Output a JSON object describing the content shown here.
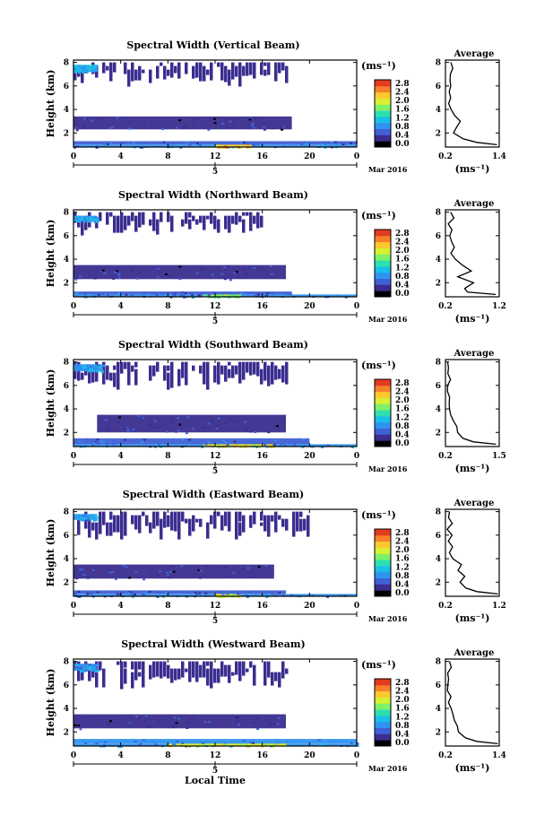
{
  "figure": {
    "time_label": "Local Time",
    "date_day": "5",
    "date_month": "Mar 2016",
    "colorbar_unit": "(ms⁻¹)",
    "profile_title": "Average",
    "profile_unit": "(ms⁻¹)",
    "height_label": "Height (km)",
    "colors": {
      "colorscale": [
        "#000000",
        "#3a2d8f",
        "#4060d6",
        "#2f94f0",
        "#19c0e8",
        "#2ee0b0",
        "#7ef06a",
        "#d6f032",
        "#fcc830",
        "#f7802a",
        "#e33b1f"
      ],
      "background": "#ffffff"
    }
  },
  "chart_data": [
    {
      "type": "heatmap",
      "title": "Spectral Width (Vertical Beam)",
      "xlabel": "",
      "ylabel": "Height (km)",
      "x_ticks": [
        "0",
        "4",
        "8",
        "12",
        "16",
        "20",
        "0"
      ],
      "y_ticks": [
        "2",
        "4",
        "6",
        "8"
      ],
      "xlim": [
        0,
        24
      ],
      "ylim": [
        0.8,
        8.2
      ],
      "colorbar": {
        "unit": "(ms⁻¹)",
        "ticks": [
          "0.0",
          "0.4",
          "0.8",
          "1.2",
          "1.6",
          "2.0",
          "2.4",
          "2.8"
        ],
        "range": [
          0,
          2.8
        ]
      },
      "layers": [
        {
          "t": [
            0,
            24
          ],
          "h": [
            0.8,
            1.0
          ],
          "v": 0.8
        },
        {
          "t": [
            12,
            15
          ],
          "h": [
            0.8,
            1.05
          ],
          "v": 2.2
        },
        {
          "t": [
            0,
            24
          ],
          "h": [
            1.0,
            1.3
          ],
          "v": 0.6
        },
        {
          "t": [
            0,
            18.5
          ],
          "h": [
            2.3,
            3.4
          ],
          "v": 0.4
        },
        {
          "t": [
            0,
            18
          ],
          "h": [
            7.2,
            8.0
          ],
          "v": 0.3
        },
        {
          "t": [
            0,
            2
          ],
          "h": [
            7.2,
            7.8
          ],
          "v": 1.0
        }
      ],
      "profile": {
        "title": "Average",
        "xlabel": "(ms⁻¹)",
        "x_ticks": [
          "0.2",
          "1.4"
        ],
        "xlim": [
          0.2,
          1.4
        ],
        "y_ticks": [
          "2",
          "4",
          "6",
          "8"
        ],
        "ylim": [
          0.8,
          8.2
        ],
        "heights": [
          1.0,
          1.2,
          1.5,
          2.0,
          2.5,
          3.0,
          3.5,
          4.0,
          4.5,
          5.0,
          5.5,
          6.0,
          6.5,
          7.0,
          7.5,
          8.0
        ],
        "values": [
          1.35,
          0.9,
          0.6,
          0.4,
          0.45,
          0.55,
          0.4,
          0.35,
          0.3,
          0.3,
          0.28,
          0.3,
          0.28,
          0.3,
          0.35,
          0.3
        ]
      }
    },
    {
      "type": "heatmap",
      "title": "Spectral Width (Northward Beam)",
      "xlabel": "",
      "ylabel": "Height (km)",
      "x_ticks": [
        "0",
        "4",
        "8",
        "12",
        "16",
        "20",
        "0"
      ],
      "y_ticks": [
        "2",
        "4",
        "6",
        "8"
      ],
      "xlim": [
        0,
        24
      ],
      "ylim": [
        0.8,
        8.2
      ],
      "colorbar": {
        "unit": "(ms⁻¹)",
        "ticks": [
          "0.0",
          "0.4",
          "0.8",
          "1.2",
          "1.6",
          "2.0",
          "2.4",
          "2.8"
        ],
        "range": [
          0,
          2.8
        ]
      },
      "layers": [
        {
          "t": [
            0,
            24
          ],
          "h": [
            0.8,
            1.0
          ],
          "v": 0.7
        },
        {
          "t": [
            11,
            14
          ],
          "h": [
            0.8,
            1.05
          ],
          "v": 1.6
        },
        {
          "t": [
            0,
            18.5
          ],
          "h": [
            1.0,
            1.25
          ],
          "v": 0.5
        },
        {
          "t": [
            0,
            18
          ],
          "h": [
            2.3,
            3.5
          ],
          "v": 0.4
        },
        {
          "t": [
            0,
            16
          ],
          "h": [
            7.2,
            8.0
          ],
          "v": 0.3
        },
        {
          "t": [
            0,
            2
          ],
          "h": [
            7.2,
            7.7
          ],
          "v": 0.9
        }
      ],
      "profile": {
        "title": "Average",
        "xlabel": "(ms⁻¹)",
        "x_ticks": [
          "0.2",
          "1.2"
        ],
        "xlim": [
          0.2,
          1.2
        ],
        "y_ticks": [
          "2",
          "4",
          "6",
          "8"
        ],
        "ylim": [
          0.8,
          8.2
        ],
        "heights": [
          1.0,
          1.2,
          1.5,
          2.0,
          2.5,
          3.0,
          3.5,
          4.0,
          4.5,
          5.0,
          5.5,
          6.0,
          6.5,
          7.0,
          7.5,
          8.0
        ],
        "values": [
          1.15,
          0.6,
          0.55,
          0.7,
          0.45,
          0.65,
          0.5,
          0.4,
          0.3,
          0.35,
          0.3,
          0.25,
          0.3,
          0.28,
          0.35,
          0.3
        ]
      }
    },
    {
      "type": "heatmap",
      "title": "Spectral Width (Southward Beam)",
      "xlabel": "",
      "ylabel": "Height (km)",
      "x_ticks": [
        "0",
        "4",
        "8",
        "12",
        "16",
        "20",
        "0"
      ],
      "y_ticks": [
        "2",
        "4",
        "6",
        "8"
      ],
      "xlim": [
        0,
        24
      ],
      "ylim": [
        0.8,
        8.2
      ],
      "colorbar": {
        "unit": "(ms⁻¹)",
        "ticks": [
          "0.0",
          "0.4",
          "0.8",
          "1.2",
          "1.6",
          "2.0",
          "2.4",
          "2.8"
        ],
        "range": [
          0,
          2.8
        ]
      },
      "layers": [
        {
          "t": [
            0,
            24
          ],
          "h": [
            0.8,
            1.0
          ],
          "v": 0.8
        },
        {
          "t": [
            11,
            17
          ],
          "h": [
            0.8,
            1.05
          ],
          "v": 2.0
        },
        {
          "t": [
            0,
            20
          ],
          "h": [
            1.0,
            1.5
          ],
          "v": 0.6
        },
        {
          "t": [
            2,
            18
          ],
          "h": [
            2.0,
            3.5
          ],
          "v": 0.4
        },
        {
          "t": [
            0,
            18
          ],
          "h": [
            7.0,
            8.0
          ],
          "v": 0.3
        },
        {
          "t": [
            0,
            2.5
          ],
          "h": [
            7.2,
            7.8
          ],
          "v": 0.9
        }
      ],
      "profile": {
        "title": "Average",
        "xlabel": "(ms⁻¹)",
        "x_ticks": [
          "0.2",
          "1.5"
        ],
        "xlim": [
          0.2,
          1.5
        ],
        "y_ticks": [
          "2",
          "4",
          "6",
          "8"
        ],
        "ylim": [
          0.8,
          8.2
        ],
        "heights": [
          1.0,
          1.2,
          1.5,
          2.0,
          2.5,
          3.0,
          3.5,
          4.0,
          4.5,
          5.0,
          5.5,
          6.0,
          6.5,
          7.0,
          7.5,
          8.0
        ],
        "values": [
          1.4,
          0.9,
          0.6,
          0.5,
          0.45,
          0.4,
          0.35,
          0.3,
          0.28,
          0.3,
          0.25,
          0.28,
          0.3,
          0.25,
          0.3,
          0.28
        ]
      }
    },
    {
      "type": "heatmap",
      "title": "Spectral Width (Eastward Beam)",
      "xlabel": "",
      "ylabel": "Height (km)",
      "x_ticks": [
        "0",
        "4",
        "8",
        "12",
        "16",
        "20",
        "0"
      ],
      "y_ticks": [
        "2",
        "4",
        "6",
        "8"
      ],
      "xlim": [
        0,
        24
      ],
      "ylim": [
        0.8,
        8.2
      ],
      "colorbar": {
        "unit": "(ms⁻¹)",
        "ticks": [
          "0.0",
          "0.4",
          "0.8",
          "1.2",
          "1.6",
          "2.0",
          "2.4",
          "2.8"
        ],
        "range": [
          0,
          2.8
        ]
      },
      "layers": [
        {
          "t": [
            0,
            24
          ],
          "h": [
            0.8,
            1.0
          ],
          "v": 0.7
        },
        {
          "t": [
            12,
            14
          ],
          "h": [
            0.8,
            1.05
          ],
          "v": 2.0
        },
        {
          "t": [
            0,
            18
          ],
          "h": [
            1.0,
            1.3
          ],
          "v": 0.5
        },
        {
          "t": [
            0,
            17
          ],
          "h": [
            2.3,
            3.5
          ],
          "v": 0.4
        },
        {
          "t": [
            0,
            20
          ],
          "h": [
            7.0,
            8.0
          ],
          "v": 0.3
        },
        {
          "t": [
            0,
            2
          ],
          "h": [
            7.3,
            7.8
          ],
          "v": 0.9
        }
      ],
      "profile": {
        "title": "Average",
        "xlabel": "(ms⁻¹)",
        "x_ticks": [
          "0.2",
          "1.2"
        ],
        "xlim": [
          0.2,
          1.2
        ],
        "y_ticks": [
          "2",
          "4",
          "6",
          "8"
        ],
        "ylim": [
          0.8,
          8.2
        ],
        "heights": [
          1.0,
          1.2,
          1.5,
          2.0,
          2.5,
          3.0,
          3.5,
          4.0,
          4.5,
          5.0,
          5.5,
          6.0,
          6.5,
          7.0,
          7.5,
          8.0
        ],
        "values": [
          1.15,
          0.8,
          0.55,
          0.5,
          0.55,
          0.45,
          0.5,
          0.35,
          0.3,
          0.32,
          0.28,
          0.3,
          0.25,
          0.3,
          0.28,
          0.3
        ]
      }
    },
    {
      "type": "heatmap",
      "title": "Spectral Width (Westward Beam)",
      "xlabel": "Local Time",
      "ylabel": "Height (km)",
      "x_ticks": [
        "0",
        "4",
        "8",
        "12",
        "16",
        "20",
        "0"
      ],
      "y_ticks": [
        "2",
        "4",
        "6",
        "8"
      ],
      "xlim": [
        0,
        24
      ],
      "ylim": [
        0.8,
        8.2
      ],
      "colorbar": {
        "unit": "(ms⁻¹)",
        "ticks": [
          "0.0",
          "0.4",
          "0.8",
          "1.2",
          "1.6",
          "2.0",
          "2.4",
          "2.8"
        ],
        "range": [
          0,
          2.8
        ]
      },
      "layers": [
        {
          "t": [
            0,
            24
          ],
          "h": [
            0.8,
            1.0
          ],
          "v": 0.9
        },
        {
          "t": [
            8,
            18
          ],
          "h": [
            0.8,
            1.05
          ],
          "v": 2.0
        },
        {
          "t": [
            0,
            24
          ],
          "h": [
            1.0,
            1.4
          ],
          "v": 0.7
        },
        {
          "t": [
            0,
            18
          ],
          "h": [
            2.3,
            3.5
          ],
          "v": 0.4
        },
        {
          "t": [
            0,
            18
          ],
          "h": [
            7.0,
            8.0
          ],
          "v": 0.3
        },
        {
          "t": [
            0,
            2
          ],
          "h": [
            7.2,
            7.8
          ],
          "v": 0.9
        }
      ],
      "profile": {
        "title": "Average",
        "xlabel": "(ms⁻¹)",
        "x_ticks": [
          "0.2",
          "1.4"
        ],
        "xlim": [
          0.2,
          1.4
        ],
        "y_ticks": [
          "2",
          "4",
          "6",
          "8"
        ],
        "ylim": [
          0.8,
          8.2
        ],
        "heights": [
          1.0,
          1.2,
          1.5,
          2.0,
          2.5,
          3.0,
          3.5,
          4.0,
          4.5,
          5.0,
          5.5,
          6.0,
          6.5,
          7.0,
          7.5,
          8.0
        ],
        "values": [
          1.35,
          0.9,
          0.65,
          0.5,
          0.45,
          0.4,
          0.35,
          0.3,
          0.28,
          0.3,
          0.25,
          0.28,
          0.3,
          0.25,
          0.3,
          0.28
        ]
      }
    }
  ]
}
